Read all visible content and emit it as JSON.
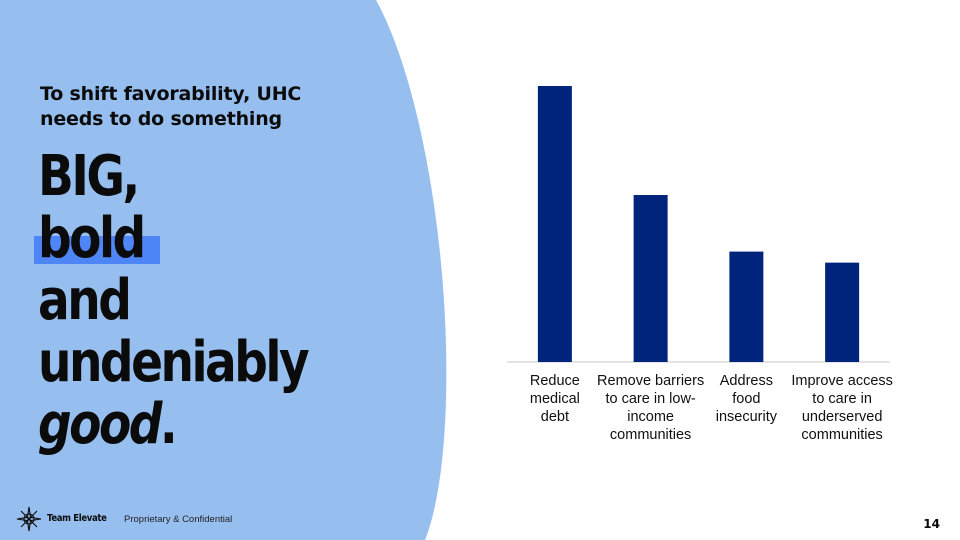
{
  "slide": {
    "subtitle": "To shift favorability, UHC needs to do something",
    "headline": {
      "line1": "BIG,",
      "line2": "bold",
      "line3": "and",
      "line4": "undeniably",
      "line5_italic": "good",
      "line5_period": "."
    },
    "page_number": "14"
  },
  "footer": {
    "team_name": "Team Elevate",
    "confidential": "Proprietary & Confidential"
  },
  "colors": {
    "blob": "#96bff0",
    "bar": "#00247b",
    "highlight": "#4f86f7",
    "text": "#0b0b0b"
  },
  "chart_data": {
    "type": "bar",
    "categories": [
      [
        "Reduce",
        "medical",
        "debt"
      ],
      [
        "Remove barriers",
        "to care in low-",
        "income",
        "communities"
      ],
      [
        "Address",
        "food",
        "insecurity"
      ],
      [
        "Improve access",
        "to care in",
        "underserved",
        "communities"
      ]
    ],
    "values": [
      100,
      60.5,
      40,
      36
    ],
    "title": "",
    "xlabel": "",
    "ylabel": "",
    "ylim": [
      0,
      100
    ],
    "grid": false,
    "legend": "none"
  }
}
